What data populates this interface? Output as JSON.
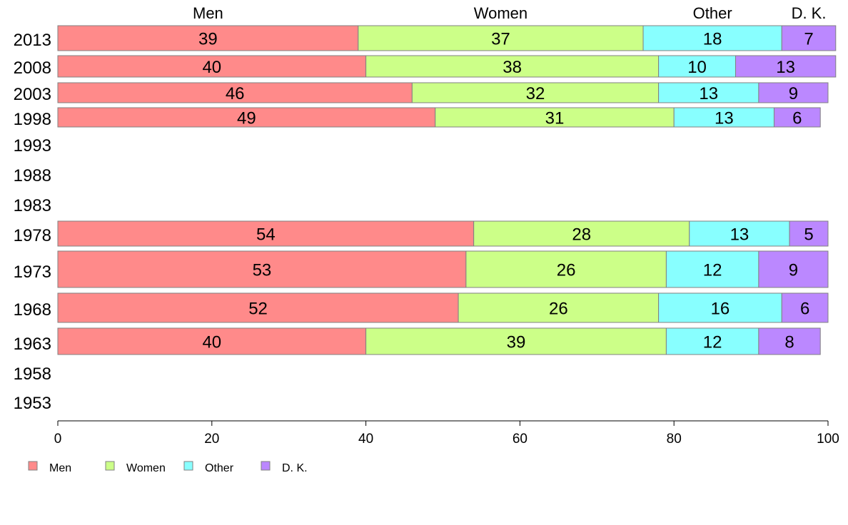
{
  "chart_data": {
    "type": "bar",
    "orientation": "horizontal",
    "stacked": true,
    "series_names": [
      "Men",
      "Women",
      "Other",
      "D. K."
    ],
    "colors": [
      "#ff8a8a",
      "#ccff88",
      "#88ffff",
      "#bb88ff"
    ],
    "categories": [
      "2013",
      "2008",
      "2003",
      "1998",
      "1993",
      "1988",
      "1983",
      "1978",
      "1973",
      "1968",
      "1963",
      "1958",
      "1953"
    ],
    "values": {
      "2013": [
        39,
        37,
        18,
        7
      ],
      "2008": [
        40,
        38,
        10,
        13
      ],
      "2003": [
        46,
        32,
        13,
        9
      ],
      "1998": [
        49,
        31,
        13,
        6
      ],
      "1993": null,
      "1988": null,
      "1983": null,
      "1978": [
        54,
        28,
        13,
        5
      ],
      "1973": [
        53,
        26,
        12,
        9
      ],
      "1968": [
        52,
        26,
        16,
        6
      ],
      "1963": [
        40,
        39,
        12,
        8
      ],
      "1958": null,
      "1953": null
    },
    "xlim": [
      0,
      100
    ],
    "x_ticks": [
      0,
      20,
      40,
      60,
      80,
      100
    ],
    "legend": {
      "placement": "bottom-left",
      "entries": [
        "Men",
        "Women",
        "Other",
        "D. K."
      ]
    },
    "top_labels": [
      "Men",
      "Women",
      "Other",
      "D. K."
    ],
    "grid": false
  }
}
